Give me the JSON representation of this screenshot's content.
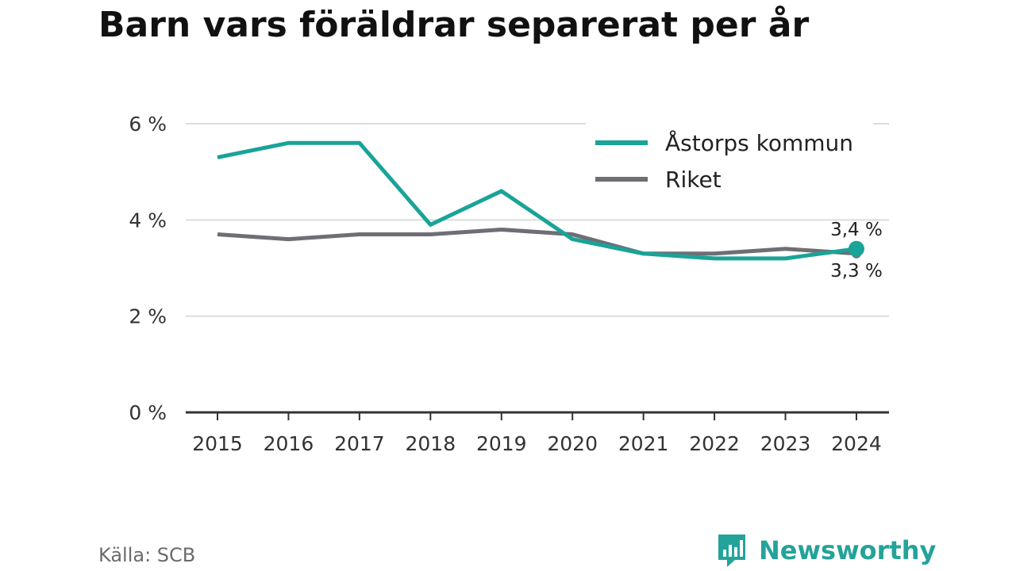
{
  "title": "Barn vars föräldrar separerat per år",
  "source": "Källa: SCB",
  "brand": {
    "name": "Newsworthy",
    "icon": "newsworthy-logo-icon",
    "color": "#24a39a"
  },
  "chart_data": {
    "type": "line",
    "title": "Barn vars föräldrar separerat per år",
    "xlabel": "",
    "ylabel": "",
    "x": [
      "2015",
      "2016",
      "2017",
      "2018",
      "2019",
      "2020",
      "2021",
      "2022",
      "2023",
      "2024"
    ],
    "ylim": [
      0,
      6
    ],
    "yticks": [
      0,
      2,
      4,
      6
    ],
    "ytick_labels": [
      "0 %",
      "2 %",
      "4 %",
      "6 %"
    ],
    "grid": true,
    "legend_position": "top-right",
    "series": [
      {
        "name": "Åstorps kommun",
        "color": "#1aa398",
        "values": [
          5.3,
          5.6,
          5.6,
          3.9,
          4.6,
          3.6,
          3.3,
          3.2,
          3.2,
          3.4
        ],
        "end_label": "3,4 %"
      },
      {
        "name": "Riket",
        "color": "#6e6e74",
        "values": [
          3.7,
          3.6,
          3.7,
          3.7,
          3.8,
          3.7,
          3.3,
          3.3,
          3.4,
          3.3
        ],
        "end_label": "3,3 %"
      }
    ]
  }
}
